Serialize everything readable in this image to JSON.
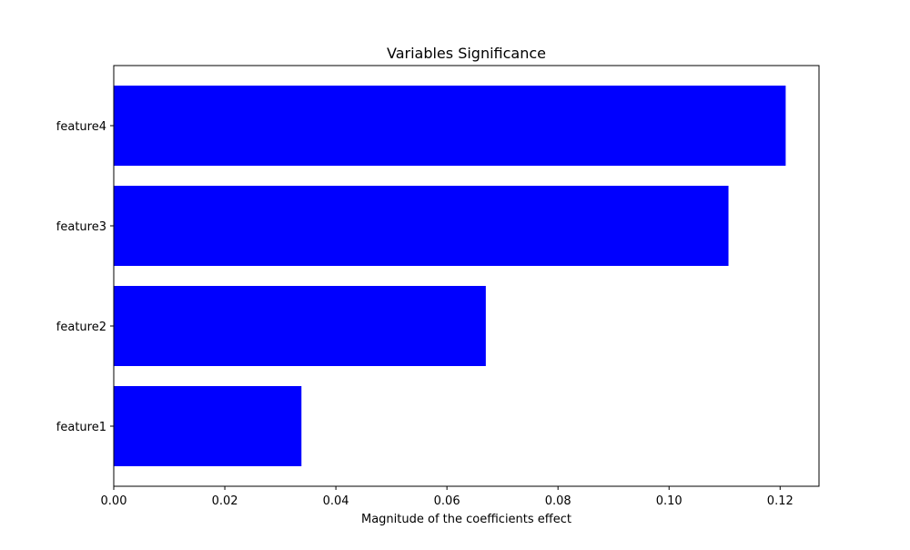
{
  "chart_data": {
    "type": "bar",
    "orientation": "horizontal",
    "title": "Variables Significance",
    "xlabel": "Magnitude of the coefficients effect",
    "ylabel": "",
    "categories": [
      "feature1",
      "feature2",
      "feature3",
      "feature4"
    ],
    "values": [
      0.0338,
      0.067,
      0.1107,
      0.121
    ],
    "xlim": [
      0,
      0.127
    ],
    "xticks": [
      0.0,
      0.02,
      0.04,
      0.06,
      0.08,
      0.1,
      0.12
    ],
    "xtick_labels": [
      "0.00",
      "0.02",
      "0.04",
      "0.06",
      "0.08",
      "0.10",
      "0.12"
    ],
    "bar_color": "#0000ff",
    "grid": false,
    "legend": "none"
  }
}
